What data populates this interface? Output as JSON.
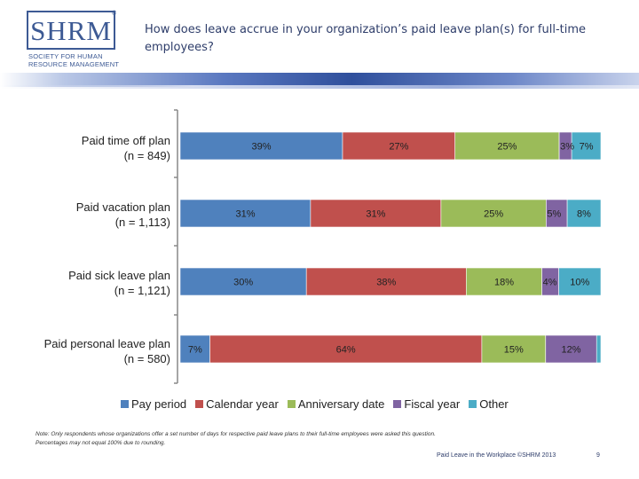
{
  "header": {
    "logo_mark": "SHRM",
    "logo_registered": "®",
    "logo_subtitle": "Society for Human Resource Management",
    "title": "How does leave accrue in your organization’s paid leave plan(s) for full-time employees?"
  },
  "chart_data": {
    "type": "bar",
    "orientation": "horizontal",
    "stacked": true,
    "stacking": "percent",
    "categories": [
      {
        "line1": "Paid time off plan",
        "line2": "(n = 849)"
      },
      {
        "line1": "Paid vacation plan",
        "line2": "(n = 1,113)"
      },
      {
        "line1": "Paid sick leave plan",
        "line2": "(n = 1,121)"
      },
      {
        "line1": "Paid personal leave plan",
        "line2": "(n = 580)"
      }
    ],
    "series": [
      {
        "name": "Pay period",
        "color": "#4f81bd",
        "values": [
          39,
          31,
          30,
          7
        ],
        "labels": [
          "39%",
          "31%",
          "30%",
          "7%"
        ]
      },
      {
        "name": "Calendar year",
        "color": "#c0504d",
        "values": [
          27,
          31,
          38,
          64
        ],
        "labels": [
          "27%",
          "31%",
          "38%",
          "64%"
        ]
      },
      {
        "name": "Anniversary date",
        "color": "#9bbb59",
        "values": [
          25,
          25,
          18,
          15
        ],
        "labels": [
          "25%",
          "25%",
          "18%",
          "15%"
        ]
      },
      {
        "name": "Fiscal year",
        "color": "#8064a2",
        "values": [
          3,
          5,
          4,
          12
        ],
        "labels": [
          "3%",
          "5%",
          "4%",
          "12%"
        ]
      },
      {
        "name": "Other",
        "color": "#4bacc6",
        "values": [
          7,
          8,
          10,
          1
        ],
        "labels": [
          "7%",
          "8%",
          "10%",
          ""
        ]
      }
    ],
    "title": "",
    "xlabel": "",
    "ylabel": "",
    "xlim": [
      0,
      100
    ],
    "grid": false,
    "legend": "bottom"
  },
  "legend_items": [
    "Pay period",
    "Calendar year",
    "Anniversary date",
    "Fiscal year",
    "Other"
  ],
  "legend_colors": [
    "#4f81bd",
    "#c0504d",
    "#9bbb59",
    "#8064a2",
    "#4bacc6"
  ],
  "note": {
    "line1": "Note: Only respondents whose organizations offer a set number of days for respective paid leave plans to their full-time employees were asked this question.",
    "line2": "Percentages may not equal 100% due to rounding."
  },
  "footer": {
    "text": "Paid Leave in the Workplace ©SHRM 2013",
    "page": "9"
  }
}
